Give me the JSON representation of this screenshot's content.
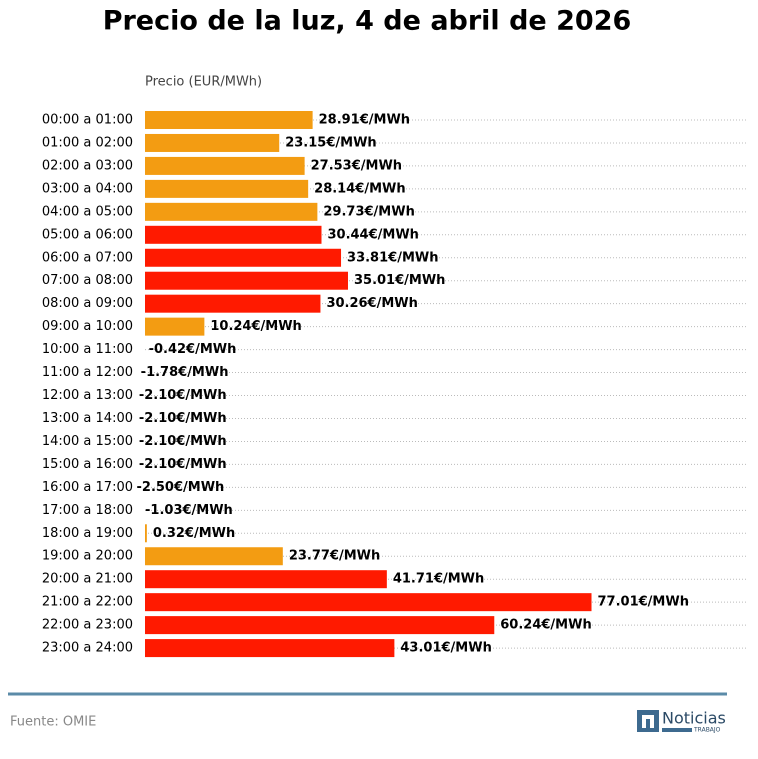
{
  "chart_data": {
    "type": "barh",
    "title": "Precio de la luz, 4 de abril de 2026",
    "x_label": "Precio (EUR/MWh)",
    "categories": [
      "00:00 a 01:00",
      "01:00 a 02:00",
      "02:00 a 03:00",
      "03:00 a 04:00",
      "04:00 a 05:00",
      "05:00 a 06:00",
      "06:00 a 07:00",
      "07:00 a 08:00",
      "08:00 a 09:00",
      "09:00 a 10:00",
      "10:00 a 11:00",
      "11:00 a 12:00",
      "12:00 a 13:00",
      "13:00 a 14:00",
      "14:00 a 15:00",
      "15:00 a 16:00",
      "16:00 a 17:00",
      "17:00 a 18:00",
      "18:00 a 19:00",
      "19:00 a 20:00",
      "20:00 a 21:00",
      "21:00 a 22:00",
      "22:00 a 23:00",
      "23:00 a 24:00"
    ],
    "values": [
      28.91,
      23.15,
      27.53,
      28.14,
      29.73,
      30.44,
      33.81,
      35.01,
      30.26,
      10.24,
      -0.42,
      -1.78,
      -2.1,
      -2.1,
      -2.1,
      -2.1,
      -2.5,
      -1.03,
      0.32,
      23.77,
      41.71,
      77.01,
      60.24,
      43.01
    ],
    "value_labels": [
      "28.91€/MWh",
      "23.15€/MWh",
      "27.53€/MWh",
      "28.14€/MWh",
      "29.73€/MWh",
      "30.44€/MWh",
      "33.81€/MWh",
      "35.01€/MWh",
      "30.26€/MWh",
      "10.24€/MWh",
      "-0.42€/MWh",
      "-1.78€/MWh",
      "-2.10€/MWh",
      "-2.10€/MWh",
      "-2.10€/MWh",
      "-2.10€/MWh",
      "-2.50€/MWh",
      "-1.03€/MWh",
      "0.32€/MWh",
      "23.77€/MWh",
      "41.71€/MWh",
      "77.01€/MWh",
      "60.24€/MWh",
      "43.01€/MWh"
    ],
    "colors": [
      "#f39c12",
      "#f39c12",
      "#f39c12",
      "#f39c12",
      "#f39c12",
      "#ff1a00",
      "#ff1a00",
      "#ff1a00",
      "#ff1a00",
      "#f39c12",
      "#f39c12",
      "#f39c12",
      "#f39c12",
      "#f39c12",
      "#f39c12",
      "#f39c12",
      "#f39c12",
      "#f39c12",
      "#f39c12",
      "#f39c12",
      "#ff1a00",
      "#ff1a00",
      "#ff1a00",
      "#ff1a00"
    ],
    "xlim": [
      0,
      104
    ],
    "grid": true,
    "source": "Fuente: OMIE",
    "logo": {
      "text": "Noticias",
      "subtext": "TRABAJO"
    }
  }
}
